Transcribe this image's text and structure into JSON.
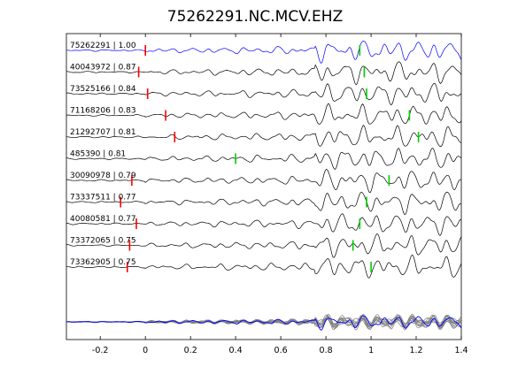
{
  "chart_data": {
    "type": "line",
    "title": "75262291.NC.MCV.EHZ",
    "xlabel": "",
    "ylabel": "",
    "xlim": [
      -0.35,
      1.4
    ],
    "x_ticks": [
      -0.2,
      0,
      0.2,
      0.4,
      0.6,
      0.8,
      1,
      1.2,
      1.4
    ],
    "x_tick_labels": [
      "-0.2",
      "0",
      "0.2",
      "0.4",
      "0.6",
      "0.8",
      "1",
      "1.2",
      "1.4"
    ],
    "grid": false,
    "legend": "none",
    "colors": {
      "reference": "#0000ff",
      "trace": "#000000",
      "stack_trace": "#808080",
      "p_pick": "#ff0000",
      "s_pick": "#00cc00"
    },
    "series": [
      {
        "label": "75262291 | 1.00",
        "p_pick": 0.0,
        "s_pick": 0.95
      },
      {
        "label": "40043972 | 0.87",
        "p_pick": -0.03,
        "s_pick": 0.97
      },
      {
        "label": "73525166 | 0.84",
        "p_pick": 0.01,
        "s_pick": 0.98
      },
      {
        "label": "71168206 | 0.83",
        "p_pick": 0.09,
        "s_pick": 1.17
      },
      {
        "label": "21292707 | 0.81",
        "p_pick": 0.13,
        "s_pick": 1.21
      },
      {
        "label": "485390 | 0.81",
        "p_pick": null,
        "s_pick": 0.4
      },
      {
        "label": "30090978 | 0.79",
        "p_pick": -0.06,
        "s_pick": 1.08
      },
      {
        "label": "73337511 | 0.77",
        "p_pick": -0.11,
        "s_pick": 0.98
      },
      {
        "label": "40080581 | 0.77",
        "p_pick": -0.04,
        "s_pick": 0.95
      },
      {
        "label": "73372065 | 0.75",
        "p_pick": -0.07,
        "s_pick": 0.92
      },
      {
        "label": "73362905 | 0.75",
        "p_pick": -0.08,
        "s_pick": 1.0
      }
    ]
  }
}
